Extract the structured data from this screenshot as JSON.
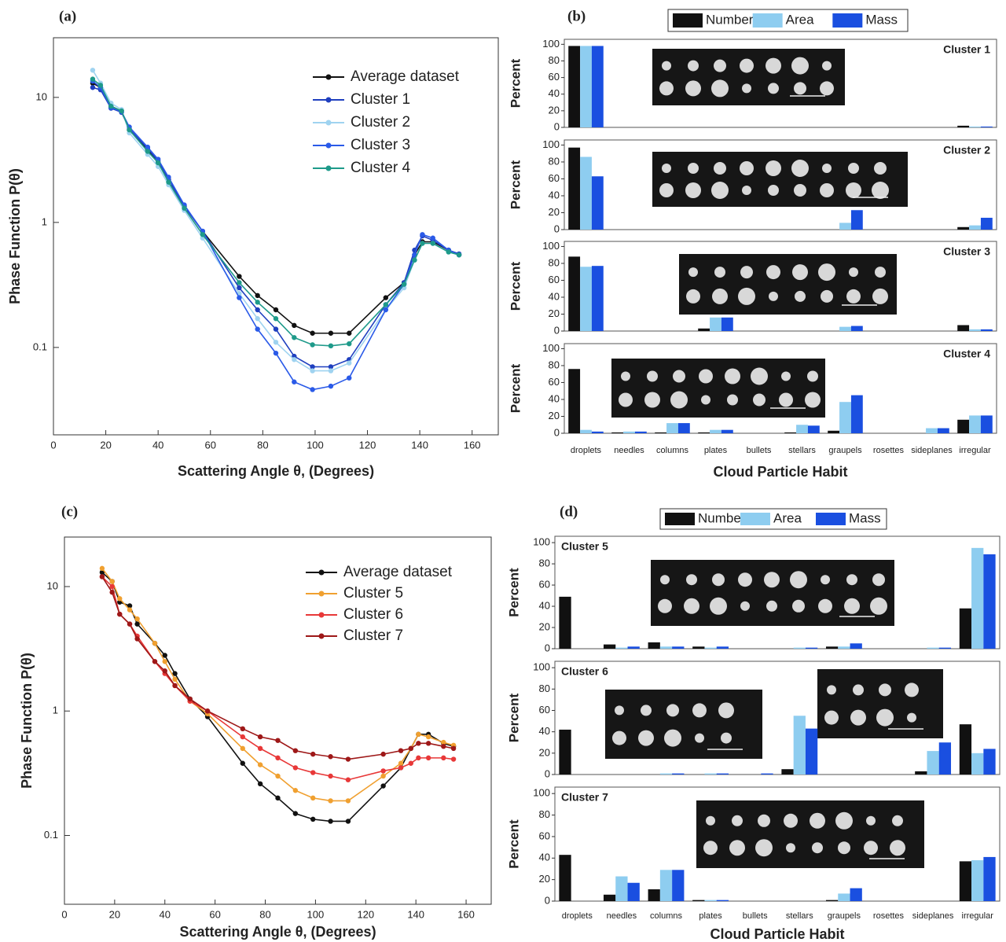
{
  "chart_data": [
    {
      "type": "line",
      "panel": "(a)",
      "log_y": true,
      "legend": "upper right",
      "xlabel": "Scattering Angle θ, (Degrees)",
      "ylabel": "Phase Function P(θ)",
      "x": [
        15,
        18,
        22,
        26,
        29,
        36,
        40,
        44,
        50,
        57,
        71,
        78,
        85,
        92,
        99,
        106,
        113,
        127,
        134,
        138,
        141,
        145,
        151,
        155
      ],
      "xlim": [
        0,
        170
      ],
      "xticks": [
        0,
        20,
        40,
        60,
        80,
        100,
        120,
        140,
        160
      ],
      "ylim": [
        0.02,
        30
      ],
      "yticks": [
        0.1,
        1,
        10
      ],
      "series": [
        {
          "name": "Average dataset",
          "color": "#111111",
          "values": [
            13,
            12,
            8.5,
            7.8,
            5.5,
            3.8,
            3.0,
            2.2,
            1.35,
            0.85,
            0.37,
            0.26,
            0.2,
            0.15,
            0.13,
            0.13,
            0.13,
            0.25,
            0.33,
            0.55,
            0.7,
            0.7,
            0.6,
            0.55
          ]
        },
        {
          "name": "Cluster 1",
          "color": "#1f3fbf",
          "values": [
            12,
            11.5,
            8.2,
            7.6,
            5.6,
            3.9,
            3.1,
            2.2,
            1.35,
            0.85,
            0.3,
            0.2,
            0.14,
            0.085,
            0.07,
            0.07,
            0.08,
            0.22,
            0.33,
            0.6,
            0.78,
            0.72,
            0.6,
            0.56
          ]
        },
        {
          "name": "Cluster 2",
          "color": "#9fd3f0",
          "values": [
            16.5,
            13,
            9,
            8,
            5.2,
            3.5,
            2.8,
            2.0,
            1.25,
            0.75,
            0.27,
            0.17,
            0.11,
            0.08,
            0.065,
            0.065,
            0.075,
            0.2,
            0.3,
            0.5,
            0.68,
            0.68,
            0.58,
            0.55
          ]
        },
        {
          "name": "Cluster 3",
          "color": "#2a5ae8",
          "values": [
            13.5,
            12,
            8.3,
            7.7,
            5.8,
            4.0,
            3.2,
            2.3,
            1.38,
            0.85,
            0.25,
            0.14,
            0.09,
            0.053,
            0.046,
            0.049,
            0.057,
            0.2,
            0.32,
            0.55,
            0.8,
            0.75,
            0.6,
            0.55
          ]
        },
        {
          "name": "Cluster 4",
          "color": "#1e9a8a",
          "values": [
            14,
            12.5,
            8.5,
            7.8,
            5.5,
            3.7,
            3.0,
            2.1,
            1.3,
            0.8,
            0.33,
            0.23,
            0.17,
            0.12,
            0.105,
            0.103,
            0.107,
            0.22,
            0.32,
            0.5,
            0.68,
            0.68,
            0.58,
            0.55
          ]
        }
      ]
    },
    {
      "type": "bar",
      "panel": "(b)",
      "xlabel": "Cloud Particle Habit",
      "ylabel": "Percent",
      "categories": [
        "droplets",
        "needles",
        "columns",
        "plates",
        "bullets",
        "stellars",
        "graupels",
        "rosettes",
        "sideplanes",
        "irregular"
      ],
      "ylim": [
        0,
        106
      ],
      "yticks": [
        0,
        20,
        40,
        60,
        80,
        100
      ],
      "series": [
        {
          "name": "Number",
          "color": "#111111"
        },
        {
          "name": "Area",
          "color": "#8ecdf0"
        },
        {
          "name": "Mass",
          "color": "#1a4fe0"
        }
      ],
      "subplots": [
        {
          "title": "Cluster 1",
          "values": [
            [
              98,
              0,
              0,
              0,
              0,
              0,
              0,
              0,
              0,
              2
            ],
            [
              98,
              0,
              0,
              0,
              0,
              0,
              0,
              0,
              0,
              1
            ],
            [
              98,
              0,
              0,
              0,
              0,
              0,
              0,
              0,
              0,
              1
            ]
          ]
        },
        {
          "title": "Cluster 2",
          "values": [
            [
              97,
              0,
              0,
              0,
              0,
              0,
              0,
              0,
              0,
              3
            ],
            [
              86,
              0,
              0,
              0,
              0,
              0,
              8,
              0,
              0,
              5
            ],
            [
              63,
              0,
              0,
              0,
              0,
              0,
              23,
              0,
              0,
              14
            ]
          ]
        },
        {
          "title": "Cluster 3",
          "values": [
            [
              88,
              0,
              0,
              3,
              0,
              0,
              0,
              0,
              0,
              7
            ],
            [
              76,
              0,
              0,
              16,
              0,
              0,
              5,
              0,
              0,
              2
            ],
            [
              77,
              0,
              0,
              16,
              0,
              0,
              6,
              0,
              0,
              2
            ]
          ]
        },
        {
          "title": "Cluster 4",
          "values": [
            [
              76,
              1,
              1,
              1,
              0,
              1,
              3,
              0,
              0,
              16
            ],
            [
              4,
              2,
              12,
              4,
              0,
              10,
              37,
              0,
              6,
              21
            ],
            [
              2,
              2,
              12,
              4,
              0,
              9,
              45,
              0,
              6,
              21
            ]
          ]
        }
      ]
    },
    {
      "type": "line",
      "panel": "(c)",
      "log_y": true,
      "legend": "upper right",
      "xlabel": "Scattering Angle θ, (Degrees)",
      "ylabel": "Phase Function P(θ)",
      "x": [
        15,
        19,
        22,
        26,
        29,
        36,
        40,
        44,
        50,
        57,
        71,
        78,
        85,
        92,
        99,
        106,
        113,
        127,
        134,
        138,
        141,
        145,
        151,
        155
      ],
      "xlim": [
        0,
        170
      ],
      "xticks": [
        0,
        20,
        40,
        60,
        80,
        100,
        120,
        140,
        160
      ],
      "ylim": [
        0.028,
        25
      ],
      "yticks": [
        0.1,
        1,
        10
      ],
      "series": [
        {
          "name": "Average dataset",
          "color": "#111111",
          "values": [
            13,
            11,
            7.5,
            7,
            5,
            3.5,
            2.8,
            2,
            1.25,
            0.9,
            0.38,
            0.26,
            0.2,
            0.15,
            0.135,
            0.13,
            0.13,
            0.25,
            0.35,
            0.5,
            0.65,
            0.65,
            0.55,
            0.52
          ]
        },
        {
          "name": "Cluster 5",
          "color": "#f0a030",
          "values": [
            14,
            11,
            8,
            6.5,
            5.5,
            3.5,
            2.5,
            1.8,
            1.2,
            0.95,
            0.5,
            0.37,
            0.3,
            0.23,
            0.2,
            0.19,
            0.19,
            0.3,
            0.38,
            0.5,
            0.65,
            0.62,
            0.56,
            0.53
          ]
        },
        {
          "name": "Cluster 6",
          "color": "#e83838",
          "values": [
            12,
            10,
            6,
            5,
            4,
            2.5,
            2,
            1.6,
            1.2,
            1.0,
            0.62,
            0.5,
            0.42,
            0.35,
            0.32,
            0.3,
            0.28,
            0.33,
            0.35,
            0.38,
            0.42,
            0.42,
            0.42,
            0.41
          ]
        },
        {
          "name": "Cluster 7",
          "color": "#9e1818",
          "values": [
            12,
            9,
            6,
            5,
            3.8,
            2.5,
            2.1,
            1.6,
            1.25,
            1.0,
            0.72,
            0.62,
            0.58,
            0.48,
            0.45,
            0.43,
            0.41,
            0.45,
            0.48,
            0.5,
            0.55,
            0.55,
            0.52,
            0.5
          ]
        }
      ]
    },
    {
      "type": "bar",
      "panel": "(d)",
      "xlabel": "Cloud Particle Habit",
      "ylabel": "Percent",
      "categories": [
        "droplets",
        "needles",
        "columns",
        "plates",
        "bullets",
        "stellars",
        "graupels",
        "rosettes",
        "sideplanes",
        "irregular"
      ],
      "ylim": [
        0,
        106
      ],
      "yticks": [
        0,
        20,
        40,
        60,
        80,
        100
      ],
      "series": [
        {
          "name": "Number",
          "color": "#111111"
        },
        {
          "name": "Area",
          "color": "#8ecdf0"
        },
        {
          "name": "Mass",
          "color": "#1a4fe0"
        }
      ],
      "subplots": [
        {
          "title": "Cluster 5",
          "values": [
            [
              49,
              4,
              6,
              2,
              0,
              0,
              2,
              0,
              0,
              38
            ],
            [
              0,
              1,
              2,
              1,
              0,
              1,
              2,
              0,
              1,
              95
            ],
            [
              0,
              2,
              2,
              2,
              0,
              1,
              5,
              0,
              1,
              89
            ]
          ]
        },
        {
          "title": "Cluster 6",
          "values": [
            [
              42,
              0,
              0,
              0,
              0,
              5,
              0,
              0,
              3,
              47
            ],
            [
              0,
              0,
              1,
              1,
              0,
              55,
              0,
              0,
              22,
              20
            ],
            [
              0,
              0,
              1,
              1,
              1,
              43,
              0,
              0,
              30,
              24
            ]
          ]
        },
        {
          "title": "Cluster 7",
          "values": [
            [
              43,
              6,
              11,
              1,
              0,
              0,
              1,
              0,
              0,
              37
            ],
            [
              0,
              23,
              29,
              1,
              0,
              0,
              7,
              0,
              0,
              38
            ],
            [
              0,
              17,
              29,
              1,
              0,
              0,
              12,
              0,
              0,
              41
            ]
          ]
        }
      ]
    }
  ]
}
